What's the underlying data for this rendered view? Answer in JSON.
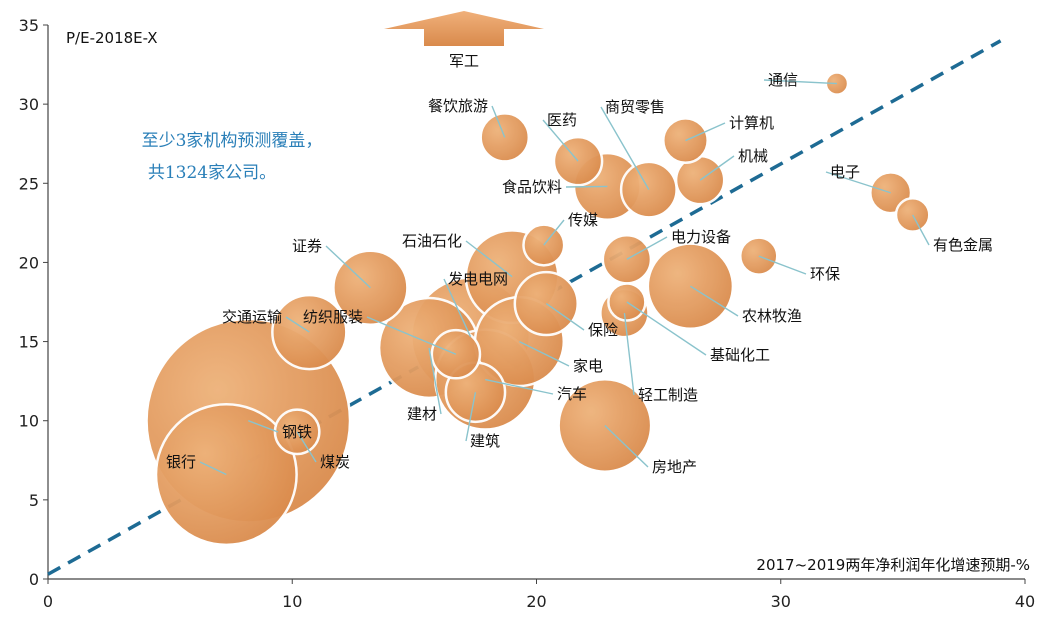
{
  "chart_data": {
    "type": "scatter",
    "title": "",
    "ylabel": "P/E-2018E-X",
    "xlabel": "2017~2019两年净利润年化增速预期-%",
    "xlim": [
      0,
      40
    ],
    "ylim": [
      0,
      35
    ],
    "xticks": [
      0,
      10,
      20,
      30,
      40
    ],
    "yticks": [
      0,
      5,
      10,
      15,
      20,
      25,
      30,
      35
    ],
    "annotation_lines": [
      "至少3家机构预测覆盖，",
      "共1324家公司。"
    ],
    "trend_line": {
      "x": [
        0,
        39
      ],
      "y": [
        0.3,
        34
      ]
    },
    "offchart_label": "军工",
    "points": [
      {
        "name": "银行",
        "x": 7.3,
        "y": 6.6,
        "size": 38
      },
      {
        "name": "钢铁",
        "x": 8.2,
        "y": 10.0,
        "size": 55
      },
      {
        "name": "煤炭",
        "x": 10.2,
        "y": 9.3,
        "size": 12
      },
      {
        "name": "交通运输",
        "x": 10.7,
        "y": 15.6,
        "size": 20
      },
      {
        "name": "证券",
        "x": 13.2,
        "y": 18.4,
        "size": 20
      },
      {
        "name": "建材",
        "x": 15.6,
        "y": 14.6,
        "size": 27
      },
      {
        "name": "纺织服装",
        "x": 16.7,
        "y": 14.2,
        "size": 13
      },
      {
        "name": "发电电网",
        "x": 17.3,
        "y": 15.3,
        "size": 32
      },
      {
        "name": "建筑",
        "x": 17.5,
        "y": 11.8,
        "size": 16
      },
      {
        "name": "汽车",
        "x": 17.9,
        "y": 12.6,
        "size": 27
      },
      {
        "name": "石油石化",
        "x": 19.0,
        "y": 19.1,
        "size": 25
      },
      {
        "name": "家电",
        "x": 19.3,
        "y": 15.0,
        "size": 24
      },
      {
        "name": "保险",
        "x": 20.4,
        "y": 17.4,
        "size": 17
      },
      {
        "name": "传媒",
        "x": 20.3,
        "y": 21.1,
        "size": 11
      },
      {
        "name": "餐饮旅游",
        "x": 18.7,
        "y": 27.9,
        "size": 13
      },
      {
        "name": "医药",
        "x": 21.7,
        "y": 26.4,
        "size": 13
      },
      {
        "name": "食品饮料",
        "x": 22.9,
        "y": 24.8,
        "size": 18
      },
      {
        "name": "商贸零售",
        "x": 24.6,
        "y": 24.6,
        "size": 15
      },
      {
        "name": "房地产",
        "x": 22.8,
        "y": 9.7,
        "size": 25
      },
      {
        "name": "轻工制造",
        "x": 23.6,
        "y": 16.8,
        "size": 13
      },
      {
        "name": "基础化工",
        "x": 23.7,
        "y": 17.5,
        "size": 10
      },
      {
        "name": "电力设备",
        "x": 23.7,
        "y": 20.2,
        "size": 13
      },
      {
        "name": "农林牧渔",
        "x": 26.3,
        "y": 18.5,
        "size": 23
      },
      {
        "name": "计算机",
        "x": 26.1,
        "y": 27.7,
        "size": 12
      },
      {
        "name": "机械",
        "x": 26.7,
        "y": 25.2,
        "size": 13
      },
      {
        "name": "环保",
        "x": 29.1,
        "y": 20.4,
        "size": 10
      },
      {
        "name": "通信",
        "x": 32.3,
        "y": 31.3,
        "size": 6
      },
      {
        "name": "电子",
        "x": 34.5,
        "y": 24.4,
        "size": 11
      },
      {
        "name": "有色金属",
        "x": 35.4,
        "y": 23.0,
        "size": 9
      }
    ]
  }
}
